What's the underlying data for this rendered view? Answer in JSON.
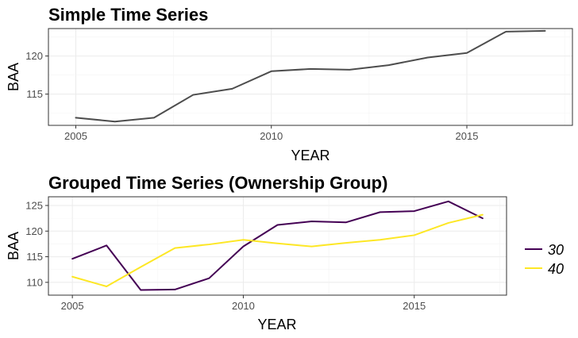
{
  "chart_data": [
    {
      "type": "line",
      "title": "Simple Time Series",
      "xlabel": "YEAR",
      "ylabel": "BAA",
      "xlim": [
        2004.3,
        2017.7
      ],
      "ylim": [
        110.9,
        123.6
      ],
      "x_ticks": [
        2005,
        2010,
        2015
      ],
      "y_ticks": [
        115,
        120
      ],
      "grid": true,
      "legend": "none",
      "series": [
        {
          "color": "#4d4d4d",
          "x": [
            2005,
            2006,
            2007,
            2008,
            2009,
            2010,
            2011,
            2012,
            2013,
            2014,
            2015,
            2016,
            2017
          ],
          "values": [
            111.9,
            111.4,
            111.9,
            114.9,
            115.7,
            118.0,
            118.3,
            118.2,
            118.8,
            119.8,
            120.4,
            123.2,
            123.3
          ]
        }
      ]
    },
    {
      "type": "line",
      "title": "Grouped Time Series (Ownership Group)",
      "xlabel": "YEAR",
      "ylabel": "BAA",
      "xlim": [
        2004.3,
        2017.7
      ],
      "ylim": [
        107.5,
        126.7
      ],
      "x_ticks": [
        2005,
        2010,
        2015
      ],
      "y_ticks": [
        110,
        115,
        120,
        125
      ],
      "grid": true,
      "legend": "right",
      "series": [
        {
          "name": "30",
          "color": "#440154",
          "x": [
            2005,
            2006,
            2007,
            2008,
            2009,
            2010,
            2011,
            2012,
            2013,
            2014,
            2015,
            2016,
            2017
          ],
          "values": [
            114.6,
            117.2,
            108.5,
            108.6,
            110.8,
            117.0,
            121.2,
            121.9,
            121.7,
            123.7,
            123.9,
            125.8,
            122.5
          ]
        },
        {
          "name": "40",
          "color": "#fde725",
          "x": [
            2005,
            2006,
            2007,
            2008,
            2009,
            2010,
            2011,
            2012,
            2013,
            2014,
            2015,
            2016,
            2017
          ],
          "values": [
            111.1,
            109.2,
            113.0,
            116.7,
            117.4,
            118.3,
            117.6,
            117.0,
            117.7,
            118.3,
            119.2,
            121.6,
            123.2
          ]
        }
      ]
    }
  ]
}
